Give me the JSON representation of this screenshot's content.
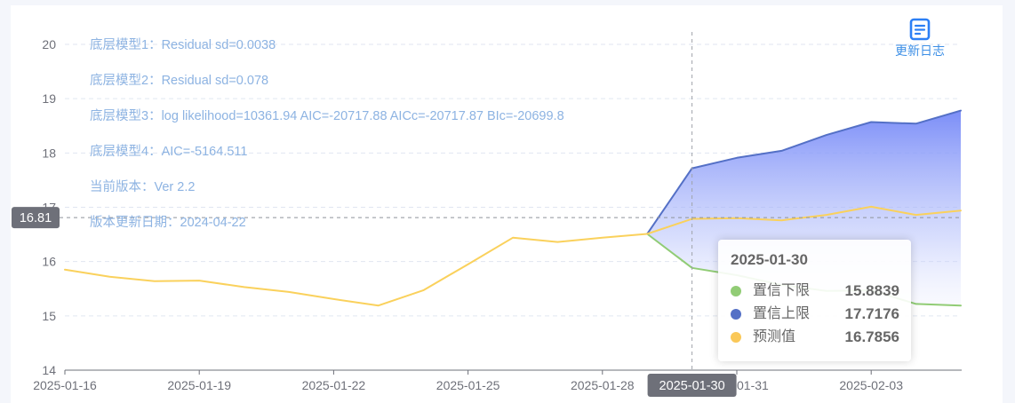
{
  "header": {
    "update_log_label": "更新日志",
    "update_log_icon": "document-list-icon"
  },
  "annotations": [
    "底层模型1：Residual sd=0.0038",
    "底层模型2：Residual sd=0.078",
    "底层模型3：log likelihood=10361.94 AIC=-20717.88 AICc=-20717.87 BIc=-20699.8",
    "底层模型4：AIC=-5164.511",
    "当前版本：Ver 2.2",
    "版本更新日期：2024-04-22"
  ],
  "axis_pointer": {
    "y_label": "16.81",
    "x_label": "2025-01-30"
  },
  "tooltip": {
    "title": "2025-01-30",
    "rows": [
      {
        "label": "置信下限",
        "value": "15.8839",
        "color": "#91cc75"
      },
      {
        "label": "置信上限",
        "value": "17.7176",
        "color": "#5470c6"
      },
      {
        "label": "预测值",
        "value": "16.7856",
        "color": "#fac858"
      }
    ]
  },
  "colors": {
    "axis_text": "#6e7079",
    "grid": "#e0e6f1",
    "pointer_badge": "#6e7079",
    "band_top": "#6f83f7",
    "band_bottom": "#ffffff",
    "accent": "#3d8fe6"
  },
  "chart_data": {
    "type": "line",
    "x": [
      "2025-01-16",
      "2025-01-17",
      "2025-01-18",
      "2025-01-19",
      "2025-01-20",
      "2025-01-21",
      "2025-01-22",
      "2025-01-23",
      "2025-01-24",
      "2025-01-25",
      "2025-01-26",
      "2025-01-27",
      "2025-01-28",
      "2025-01-29",
      "2025-01-30",
      "2025-01-31",
      "2025-02-01",
      "2025-02-02",
      "2025-02-03",
      "2025-02-04",
      "2025-02-05"
    ],
    "x_tick_labels": [
      "2025-01-16",
      "2025-01-19",
      "2025-01-22",
      "2025-01-25",
      "2025-01-28",
      "2025-01-31",
      "2025-02-03"
    ],
    "y_tick_labels": [
      "14",
      "15",
      "16",
      "17",
      "18",
      "19",
      "20"
    ],
    "ylim": [
      14,
      20
    ],
    "grid": true,
    "series": [
      {
        "name": "置信下限",
        "color": "#91cc75",
        "values": [
          null,
          null,
          null,
          null,
          null,
          null,
          null,
          null,
          null,
          null,
          null,
          null,
          null,
          16.51,
          15.8839,
          15.75,
          15.57,
          15.46,
          15.47,
          15.22,
          15.19
        ]
      },
      {
        "name": "置信上限",
        "color": "#5470c6",
        "values": [
          null,
          null,
          null,
          null,
          null,
          null,
          null,
          null,
          null,
          null,
          null,
          null,
          null,
          16.51,
          17.7176,
          17.91,
          18.04,
          18.33,
          18.57,
          18.54,
          18.78
        ]
      },
      {
        "name": "预测值",
        "color": "#fad15c",
        "values": [
          15.85,
          15.72,
          15.64,
          15.65,
          15.53,
          15.44,
          15.31,
          15.19,
          15.47,
          15.95,
          16.44,
          16.36,
          16.44,
          16.51,
          16.7856,
          16.8,
          16.76,
          16.86,
          17.01,
          16.86,
          16.94
        ]
      }
    ]
  }
}
